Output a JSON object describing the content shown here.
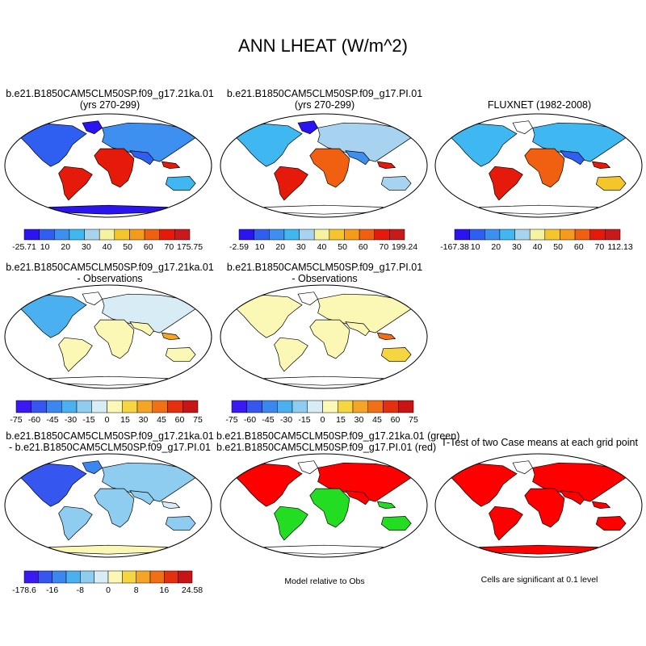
{
  "title": "ANN LHEAT (W/m^2)",
  "panels": {
    "p1": {
      "title1": "b.e21.B1850CAM5CLM50SP.f09_g17.21ka.01",
      "title2": "(yrs 270-299)"
    },
    "p2": {
      "title1": "b.e21.B1850CAM5CLM50SP.f09_g17.PI.01",
      "title2": "(yrs 270-299)"
    },
    "p3": {
      "title1": "FLUXNET (1982-2008)"
    },
    "p4": {
      "title1": "b.e21.B1850CAM5CLM50SP.f09_g17.21ka.01",
      "title2": "- Observations"
    },
    "p5": {
      "title1": "b.e21.B1850CAM5CLM50SP.f09_g17.PI.01",
      "title2": "- Observations"
    },
    "p7": {
      "title1": "b.e21.B1850CAM5CLM50SP.f09_g17.21ka.01",
      "title2": "- b.e21.B1850CAM5CLM50SP.f09_g17.PI.01"
    },
    "p8": {
      "title1": "b.e21.B1850CAM5CLM50SP.f09_g17.21ka.01 (green)",
      "title2": "b.e21.B1850CAM5CLM50SP.f09_g17.PI.01 (red)",
      "note": "Model relative to Obs"
    },
    "p9": {
      "title1": "T-Test of two Case means at each grid point",
      "note": "Cells are significant at 0.1 level"
    }
  },
  "colors": {
    "seq": [
      "#2a14f0",
      "#2f5ff0",
      "#3d8ff0",
      "#3fb7f0",
      "#a7d3f0",
      "#f5f3a0",
      "#f5c52c",
      "#f59a1a",
      "#f06010",
      "#e51a0a",
      "#c81a1a"
    ],
    "div": [
      "#3a1af0",
      "#3656f0",
      "#3c86f0",
      "#4ab0f0",
      "#8ecdf0",
      "#d8ecf5",
      "#fbf7b5",
      "#f5d640",
      "#f5a525",
      "#f07015",
      "#e53010",
      "#c81414"
    ],
    "ocean": "#ffffff",
    "coast": "#000000",
    "green": "#22dd22",
    "red": "#ff0000"
  },
  "chart_data": [
    {
      "panel": "p1",
      "type": "map",
      "colorbar": {
        "labels": [
          "-25.71",
          "10",
          "20",
          "30",
          "40",
          "50",
          "60",
          "70",
          "175.75"
        ]
      }
    },
    {
      "panel": "p2",
      "type": "map",
      "colorbar": {
        "labels": [
          "-2.59",
          "10",
          "20",
          "30",
          "40",
          "50",
          "60",
          "70",
          "199.24"
        ]
      }
    },
    {
      "panel": "p3",
      "type": "map",
      "colorbar": {
        "labels": [
          "-167.38",
          "10",
          "20",
          "30",
          "40",
          "50",
          "60",
          "70",
          "112.13"
        ]
      }
    },
    {
      "panel": "p4",
      "type": "map",
      "colorbar": {
        "labels": [
          "-75",
          "-60",
          "-45",
          "-30",
          "-15",
          "0",
          "15",
          "30",
          "45",
          "60",
          "75"
        ]
      }
    },
    {
      "panel": "p5",
      "type": "map",
      "colorbar": {
        "labels": [
          "-75",
          "-60",
          "-45",
          "-30",
          "-15",
          "0",
          "15",
          "30",
          "45",
          "60",
          "75"
        ]
      }
    },
    {
      "panel": "p7",
      "type": "map",
      "colorbar": {
        "labels": [
          "-178.6",
          "-16",
          "-8",
          "0",
          "8",
          "16",
          "24.58"
        ]
      }
    },
    {
      "panel": "p8",
      "type": "map"
    },
    {
      "panel": "p9",
      "type": "map"
    }
  ]
}
